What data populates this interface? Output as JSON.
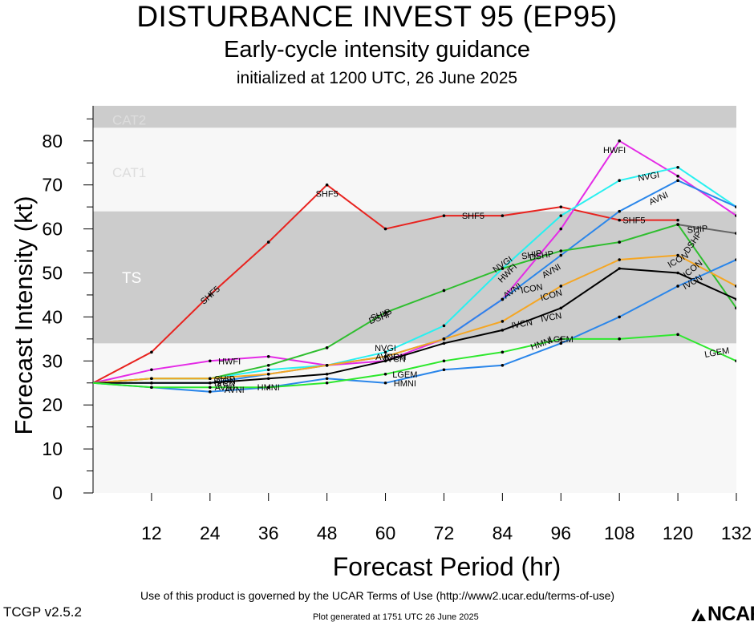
{
  "header": {
    "title": "DISTURBANCE INVEST 95 (EP95)",
    "subtitle": "Early-cycle intensity guidance",
    "initialized": "initialized at 1200 UTC, 26 June 2025"
  },
  "footer": {
    "terms": "Use of this product is governed by the UCAR Terms of Use (http://www2.ucar.edu/terms-of-use)",
    "version": "TCGP v2.5.2",
    "generated": "Plot generated at 1751 UTC   26 June 2025",
    "logo": "NCAR"
  },
  "chart_data": {
    "type": "line",
    "xlabel": "Forecast Period (hr)",
    "ylabel": "Forecast Intensity (kt)",
    "xlim": [
      0,
      132
    ],
    "ylim": [
      0,
      87
    ],
    "xticks": [
      12,
      24,
      36,
      48,
      60,
      72,
      84,
      96,
      108,
      120,
      132
    ],
    "yticks": [
      0,
      10,
      20,
      30,
      40,
      50,
      60,
      70,
      80
    ],
    "bands": [
      {
        "label": "TS",
        "from": 34,
        "to": 64,
        "color": "#cccccc"
      },
      {
        "label": "CAT1",
        "from": 64,
        "to": 83,
        "color": "#f7f7f7"
      },
      {
        "label": "CAT2",
        "from": 83,
        "to": 96,
        "color": "#cccccc"
      }
    ],
    "plot_background": "#f7f7f7",
    "series": [
      {
        "name": "SHF5",
        "color": "#e8231f",
        "x": [
          0,
          12,
          24,
          36,
          48,
          60,
          72,
          84,
          96,
          108,
          120
        ],
        "y": [
          25,
          32,
          45,
          57,
          70,
          60,
          63,
          63,
          65,
          62,
          62
        ]
      },
      {
        "name": "HWFI",
        "color": "#e42be6",
        "x": [
          0,
          12,
          24,
          36,
          48,
          60,
          72,
          84,
          96,
          108,
          120,
          132
        ],
        "y": [
          25,
          28,
          30,
          31,
          29,
          30,
          35,
          44,
          60,
          80,
          72,
          63
        ]
      },
      {
        "name": "NVGI",
        "color": "#28f0f0",
        "x": [
          0,
          12,
          24,
          36,
          48,
          60,
          72,
          84,
          96,
          108,
          120,
          132
        ],
        "y": [
          25,
          26,
          26,
          28,
          29,
          32,
          38,
          51,
          63,
          71,
          74,
          65
        ]
      },
      {
        "name": "AVNI",
        "color": "#2a86ea",
        "x": [
          0,
          12,
          24,
          36,
          48,
          60,
          72,
          84,
          96,
          108,
          120,
          132
        ],
        "y": [
          25,
          25,
          25,
          27,
          29,
          31,
          35,
          44,
          54,
          64,
          71,
          65
        ]
      },
      {
        "name": "DSHP",
        "color": "#2fbe2f",
        "x": [
          0,
          12,
          24,
          36,
          48,
          60,
          72,
          84,
          96,
          108,
          120,
          132
        ],
        "y": [
          25,
          26,
          26,
          29,
          33,
          41,
          46,
          51,
          55,
          57,
          61,
          42
        ]
      },
      {
        "name": "SHIP",
        "color": "#666666",
        "x": [
          120,
          132
        ],
        "y": [
          61,
          59
        ]
      },
      {
        "name": "ICON",
        "color": "#f5a623",
        "x": [
          0,
          12,
          24,
          36,
          48,
          60,
          72,
          84,
          96,
          108,
          120,
          132
        ],
        "y": [
          25,
          26,
          26,
          27,
          29,
          31,
          35,
          39,
          47,
          53,
          54,
          47
        ]
      },
      {
        "name": "IVCN",
        "color": "#000000",
        "x": [
          0,
          12,
          24,
          36,
          48,
          60,
          72,
          84,
          96,
          108,
          120,
          132
        ],
        "y": [
          25,
          25,
          25,
          26,
          27,
          30,
          34,
          37,
          42,
          51,
          50,
          44
        ]
      },
      {
        "name": "HMNI",
        "color": "#2a86ea",
        "x": [
          0,
          12,
          24,
          36,
          48,
          60,
          72,
          84,
          96,
          108,
          120,
          132
        ],
        "y": [
          25,
          24,
          23,
          24,
          26,
          25,
          28,
          29,
          34,
          40,
          47,
          53
        ]
      },
      {
        "name": "LGEM",
        "color": "#2ee82e",
        "x": [
          0,
          12,
          24,
          36,
          48,
          60,
          72,
          84,
          96,
          108,
          120,
          132
        ],
        "y": [
          25,
          24,
          24,
          24,
          25,
          27,
          30,
          32,
          35,
          35,
          36,
          30
        ]
      }
    ],
    "labels": [
      {
        "text": "SHF5",
        "x": 24,
        "y": 45,
        "angle": -42
      },
      {
        "text": "SHF5",
        "x": 48,
        "y": 68,
        "angle": 0
      },
      {
        "text": "SHF5",
        "x": 78,
        "y": 63,
        "angle": 0
      },
      {
        "text": "SHF5",
        "x": 111,
        "y": 62,
        "angle": 0
      },
      {
        "text": "HWFI",
        "x": 28,
        "y": 30,
        "angle": 0
      },
      {
        "text": "HWFI",
        "x": 107,
        "y": 78,
        "angle": 0
      },
      {
        "text": "HWFI",
        "x": 85,
        "y": 50,
        "angle": -45
      },
      {
        "text": "NVGI",
        "x": 60,
        "y": 33,
        "angle": 0
      },
      {
        "text": "NVGI",
        "x": 84,
        "y": 52,
        "angle": -35
      },
      {
        "text": "NVGI",
        "x": 114,
        "y": 72,
        "angle": -10
      },
      {
        "text": "AVNI",
        "x": 60,
        "y": 31,
        "angle": 0
      },
      {
        "text": "AVNI",
        "x": 86,
        "y": 46,
        "angle": -35
      },
      {
        "text": "AVNI",
        "x": 116,
        "y": 67,
        "angle": -25
      },
      {
        "text": "DSHP",
        "x": 59,
        "y": 40,
        "angle": -20
      },
      {
        "text": "DSHP",
        "x": 92,
        "y": 54,
        "angle": -10
      },
      {
        "text": "DSHP",
        "x": 123,
        "y": 57,
        "angle": -55
      },
      {
        "text": "SHIP",
        "x": 124,
        "y": 60,
        "angle": -5
      },
      {
        "text": "ICON",
        "x": 94,
        "y": 45,
        "angle": -15
      },
      {
        "text": "ICON",
        "x": 123,
        "y": 51,
        "angle": -40
      },
      {
        "text": "IVCN",
        "x": 94,
        "y": 40,
        "angle": -10
      },
      {
        "text": "IVCN",
        "x": 123,
        "y": 48,
        "angle": -30
      },
      {
        "text": "HMNI",
        "x": 36,
        "y": 24,
        "angle": 0
      },
      {
        "text": "HMNI",
        "x": 64,
        "y": 25,
        "angle": 0
      },
      {
        "text": "HMNI",
        "x": 92,
        "y": 34,
        "angle": -20
      },
      {
        "text": "LGEM",
        "x": 64,
        "y": 27,
        "angle": 0
      },
      {
        "text": "LGEM",
        "x": 96,
        "y": 35,
        "angle": 0
      },
      {
        "text": "LGEM",
        "x": 128,
        "y": 32,
        "angle": -10
      },
      {
        "text": "SHIP",
        "x": 27,
        "y": 26,
        "angle": 0
      },
      {
        "text": "ICON",
        "x": 27,
        "y": 25.5,
        "angle": 0
      },
      {
        "text": "IVCN",
        "x": 27,
        "y": 25,
        "angle": 0
      },
      {
        "text": "AVNI",
        "x": 27,
        "y": 24,
        "angle": 0
      },
      {
        "text": "SHIP",
        "x": 59,
        "y": 40.5,
        "angle": -20
      },
      {
        "text": "ICON",
        "x": 62,
        "y": 31,
        "angle": 0
      },
      {
        "text": "IVCN",
        "x": 62,
        "y": 30.5,
        "angle": 0
      },
      {
        "text": "AVNI",
        "x": 29,
        "y": 23.5,
        "angle": 0
      },
      {
        "text": "ICON",
        "x": 90,
        "y": 46.5,
        "angle": -10
      },
      {
        "text": "AVNI",
        "x": 94,
        "y": 50.5,
        "angle": -30
      },
      {
        "text": "SHIP",
        "x": 90,
        "y": 54.2,
        "angle": -10
      },
      {
        "text": "IVCN",
        "x": 88,
        "y": 38.5,
        "angle": -10
      },
      {
        "text": "ICON",
        "x": 120,
        "y": 53,
        "angle": -30
      }
    ]
  }
}
